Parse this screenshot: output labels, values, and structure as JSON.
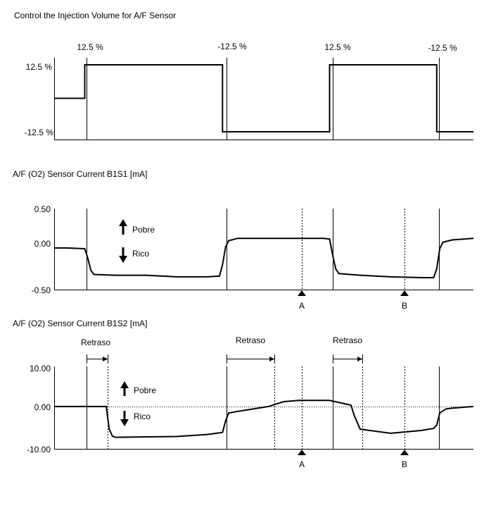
{
  "chart_data": [
    {
      "type": "line",
      "title": "Control the Injection Volume for A/F Sensor",
      "yticks": [
        "12.5 %",
        "-12.5 %"
      ],
      "step_labels": [
        "12.5 %",
        "-12.5 %",
        "12.5 %",
        "-12.5 %"
      ],
      "series": [
        {
          "x": [
            0,
            10,
            10,
            55,
            55,
            90,
            90,
            125,
            125,
            137
          ],
          "y": [
            0,
            0,
            12.5,
            12.5,
            -12.5,
            -12.5,
            12.5,
            12.5,
            -12.5,
            -12.5
          ]
        }
      ]
    },
    {
      "type": "line",
      "title": "A/F (O2) Sensor Current B1S1 [mA]",
      "yticks": [
        "0.50",
        "0.00",
        "-0.50"
      ],
      "ylim": [
        -0.5,
        0.5
      ],
      "markers": [
        "A",
        "B"
      ],
      "legend": {
        "up": "Pobre",
        "down": "Rico"
      },
      "series": [
        {
          "x": [
            0,
            4,
            10,
            11,
            12,
            13,
            20,
            30,
            40,
            50,
            54,
            55,
            56,
            57,
            60,
            70,
            80,
            88,
            90,
            91,
            92,
            93,
            100,
            110,
            120,
            124,
            125,
            126,
            127,
            130,
            137
          ],
          "y": [
            0.01,
            0.01,
            0.0,
            -0.12,
            -0.27,
            -0.32,
            -0.33,
            -0.33,
            -0.35,
            -0.35,
            -0.34,
            -0.2,
            0.02,
            0.1,
            0.13,
            0.13,
            0.13,
            0.13,
            0.12,
            -0.08,
            -0.25,
            -0.31,
            -0.33,
            -0.35,
            -0.36,
            -0.36,
            -0.25,
            0.0,
            0.08,
            0.11,
            0.13
          ]
        }
      ]
    },
    {
      "type": "line",
      "title": "A/F (O2) Sensor Current B1S2 [mA]",
      "yticks": [
        "10.00",
        "0.00",
        "-10.00"
      ],
      "ylim": [
        -10,
        10
      ],
      "markers": [
        "A",
        "B"
      ],
      "legend": {
        "up": "Pobre",
        "down": "Rico"
      },
      "delay_label": "Retraso",
      "series": [
        {
          "x": [
            0,
            10,
            17,
            18,
            19,
            20,
            30,
            40,
            50,
            55,
            56,
            57,
            60,
            65,
            70,
            75,
            80,
            90,
            96,
            97,
            98,
            100,
            110,
            120,
            124,
            125,
            126,
            128,
            130,
            137
          ],
          "y": [
            0.1,
            0.1,
            0.1,
            -5.5,
            -7.2,
            -7.5,
            -7.4,
            -7.3,
            -6.8,
            -6.3,
            -3.5,
            -1.5,
            -1.1,
            -0.5,
            0.1,
            1.3,
            1.6,
            1.6,
            0.6,
            0.4,
            -2.0,
            -5.5,
            -6.5,
            -5.8,
            -5.3,
            -4.5,
            -1.5,
            -0.5,
            -0.3,
            0.1
          ]
        }
      ]
    }
  ]
}
